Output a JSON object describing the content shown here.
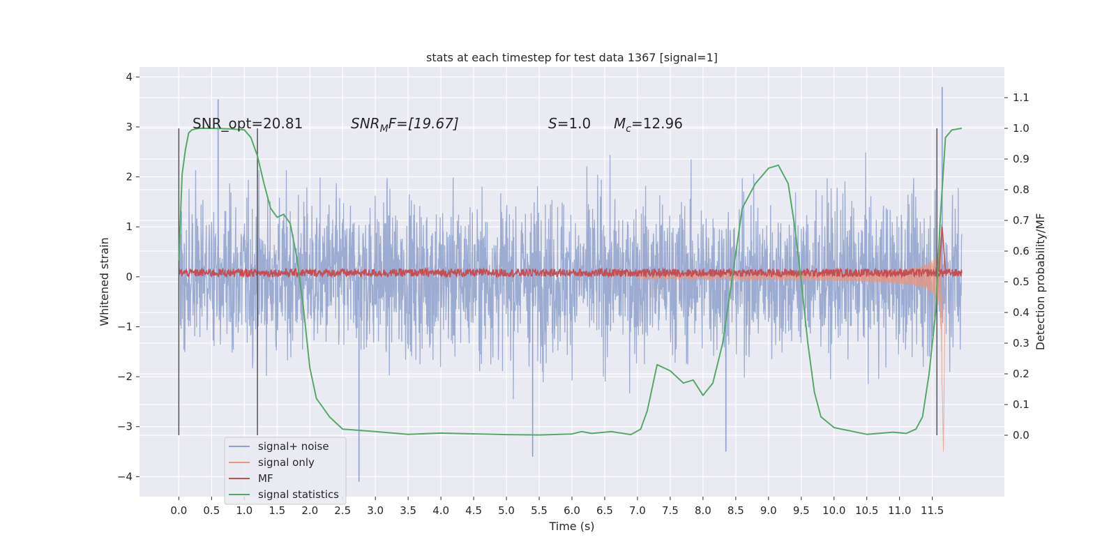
{
  "chart_data": {
    "type": "line",
    "title": "stats at each timestep for test data 1367 [signal=1]",
    "xlabel": "Time (s)",
    "ylabel": "Whitened strain",
    "ylabel_right": "Detection probability/MF",
    "xlim": [
      -0.6,
      12.6
    ],
    "ylim": [
      -4.4,
      4.2
    ],
    "ylim_right": [
      -0.2,
      1.2
    ],
    "x_ticks": [
      "0.0",
      "0.5",
      "1.0",
      "1.5",
      "2.0",
      "2.5",
      "3.0",
      "3.5",
      "4.0",
      "4.5",
      "5.0",
      "5.5",
      "6.0",
      "6.5",
      "7.0",
      "7.5",
      "8.0",
      "8.5",
      "9.0",
      "9.5",
      "10.0",
      "10.5",
      "11.0",
      "11.5"
    ],
    "y_ticks": [
      "4",
      "3",
      "2",
      "1",
      "0",
      "−1",
      "−2",
      "−3",
      "−4"
    ],
    "y_ticks_right": [
      "1.1",
      "1.0",
      "0.9",
      "0.8",
      "0.7",
      "0.6",
      "0.5",
      "0.4",
      "0.3",
      "0.2",
      "0.1",
      "0.0"
    ],
    "grid": true,
    "legend_position": "lower-left",
    "annotations": {
      "snr_opt": "SNR_opt=20.81",
      "snr_mf_label": "SNR",
      "snr_mf_sub": "M",
      "snr_mf_value": "F=[19.67]",
      "s_label": "S",
      "s_value": "=1.0",
      "mc_label": "M",
      "mc_sub": "c",
      "mc_value": "=12.96"
    },
    "vlines": [
      0.0,
      1.2,
      11.57
    ],
    "series": [
      {
        "name": "signal+ noise",
        "color": "#8da0cb",
        "axis": "left",
        "description": "noise envelope",
        "x_range": [
          0.0,
          11.95
        ],
        "amplitude": [
          -2.6,
          2.6
        ],
        "peaks": [
          [
            0.6,
            3.55
          ],
          [
            11.65,
            3.8
          ],
          [
            2.75,
            -4.1
          ],
          [
            5.4,
            -3.6
          ],
          [
            8.35,
            -3.5
          ]
        ]
      },
      {
        "name": "signal only",
        "color": "#e8967c",
        "axis": "left",
        "chirp_end": 11.65,
        "x_range": [
          0.0,
          11.95
        ],
        "min": -3.5,
        "max": 2.0
      },
      {
        "name": "MF",
        "color": "#c44e52",
        "axis": "left",
        "baseline": 0.08,
        "peak": [
          11.65,
          1.0
        ]
      },
      {
        "name": "signal statistics",
        "color": "#55a868",
        "axis": "right",
        "x": [
          0.0,
          0.05,
          0.1,
          0.15,
          0.2,
          0.3,
          0.5,
          0.8,
          1.0,
          1.1,
          1.2,
          1.3,
          1.4,
          1.5,
          1.6,
          1.7,
          1.8,
          1.9,
          2.0,
          2.1,
          2.3,
          2.5,
          3.0,
          3.5,
          4.0,
          5.0,
          5.5,
          6.0,
          6.15,
          6.3,
          6.6,
          6.9,
          7.05,
          7.15,
          7.3,
          7.5,
          7.7,
          7.85,
          8.0,
          8.15,
          8.3,
          8.45,
          8.6,
          8.8,
          9.0,
          9.15,
          9.3,
          9.4,
          9.5,
          9.6,
          9.7,
          9.8,
          10.0,
          10.5,
          10.9,
          11.1,
          11.25,
          11.35,
          11.45,
          11.55,
          11.62,
          11.7,
          11.8,
          11.95
        ],
        "y": [
          0.57,
          0.85,
          0.93,
          0.985,
          0.995,
          1.0,
          1.0,
          0.998,
          0.995,
          0.97,
          0.91,
          0.82,
          0.74,
          0.71,
          0.72,
          0.69,
          0.58,
          0.42,
          0.22,
          0.12,
          0.06,
          0.02,
          0.012,
          0.003,
          0.007,
          0.002,
          0.001,
          0.004,
          0.012,
          0.006,
          0.012,
          0.002,
          0.02,
          0.08,
          0.23,
          0.21,
          0.17,
          0.18,
          0.13,
          0.17,
          0.3,
          0.52,
          0.74,
          0.82,
          0.87,
          0.88,
          0.82,
          0.68,
          0.5,
          0.3,
          0.14,
          0.06,
          0.025,
          0.003,
          0.01,
          0.006,
          0.02,
          0.06,
          0.2,
          0.4,
          0.7,
          0.97,
          0.995,
          1.0
        ]
      }
    ]
  }
}
